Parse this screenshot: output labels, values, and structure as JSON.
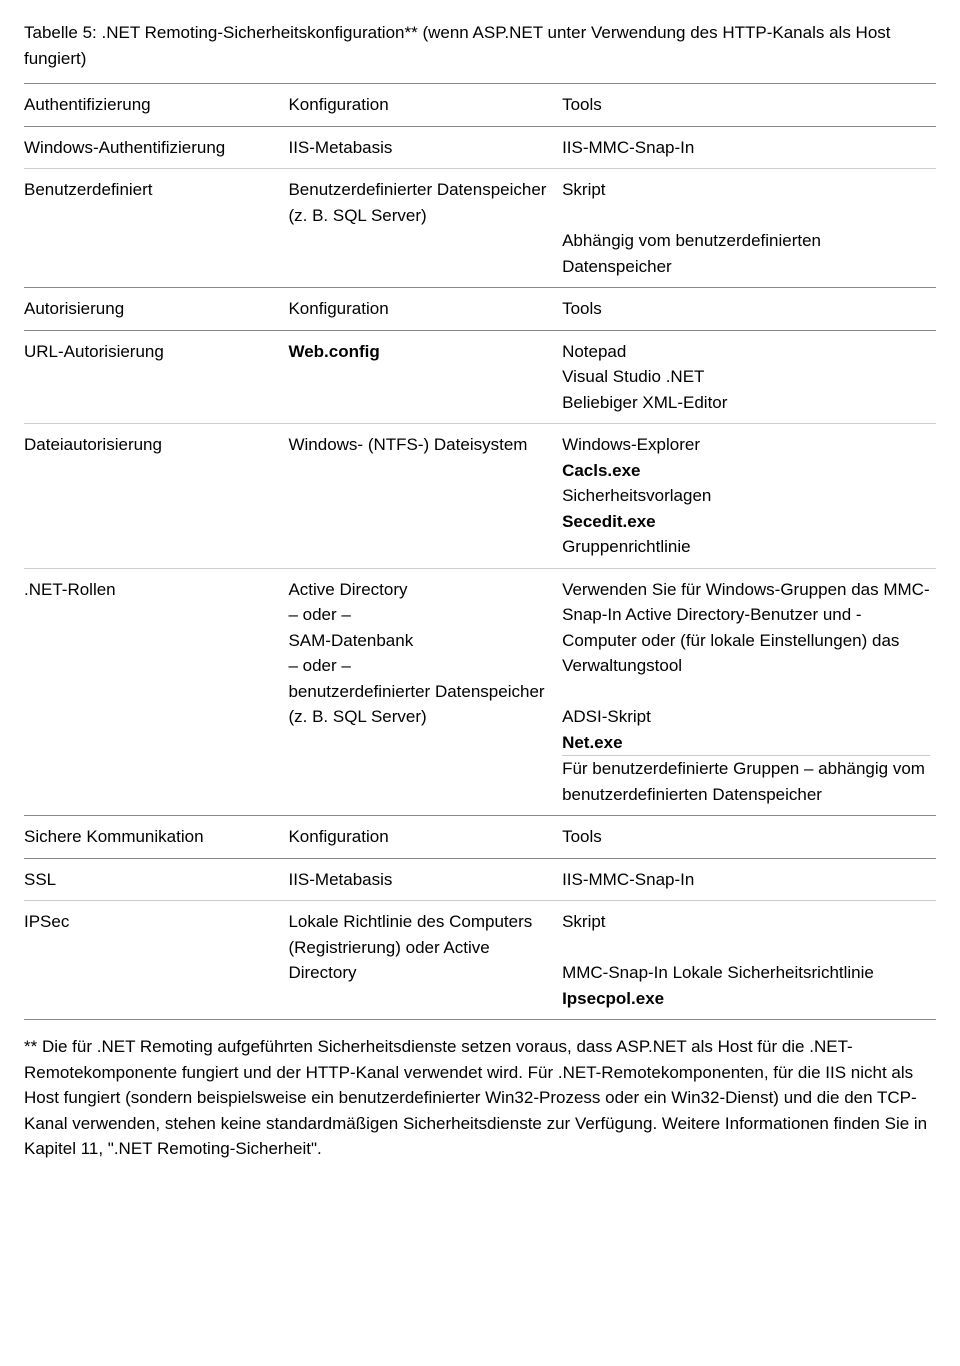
{
  "title": "Tabelle 5: .NET Remoting-Sicherheitskonfiguration** (wenn ASP.NET unter Verwendung des HTTP-Kanals als Host fungiert)",
  "rows": {
    "h1": {
      "c1": "Authentifizierung",
      "c2": "Konfiguration",
      "c3": "Tools"
    },
    "r1": {
      "c1": "Windows-Authentifizierung",
      "c2": "IIS-Metabasis",
      "c3": "IIS-MMC-Snap-In"
    },
    "r2": {
      "c1": "Benutzerdefiniert",
      "c2": "Benutzerdefinierter Datenspeicher (z. B. SQL Server)",
      "c3a": "Skript",
      "c3b": "Abhängig vom benutzerdefinierten Datenspeicher"
    },
    "h2": {
      "c1": "Autorisierung",
      "c2": "Konfiguration",
      "c3": "Tools"
    },
    "r3": {
      "c1": "URL-Autorisierung",
      "c2": "Web.config",
      "c3a": "Notepad",
      "c3b": "Visual Studio .NET",
      "c3c": "Beliebiger XML-Editor"
    },
    "r4": {
      "c1": "Dateiautorisierung",
      "c2": "Windows- (NTFS-) Dateisystem",
      "c3a": "Windows-Explorer",
      "c3b": "Cacls.exe",
      "c3c": "Sicherheitsvorlagen",
      "c3d": "Secedit.exe",
      "c3e": "Gruppenrichtlinie"
    },
    "r5": {
      "c1": ".NET-Rollen",
      "c2a": "Active Directory",
      "c2b": "– oder –",
      "c2c": "SAM-Datenbank",
      "c2d": "– oder –",
      "c2e": "benutzerdefinierter Datenspeicher (z. B. SQL Server)",
      "c3a": "Verwenden Sie für Windows-Gruppen das MMC-Snap-In Active Directory-Benutzer und -Computer oder (für lokale Einstellungen) das Verwaltungstool",
      "c3b": "ADSI-Skript",
      "c3c": "Net.exe",
      "c3d": "Für benutzerdefinierte Gruppen – abhängig vom benutzerdefinierten Datenspeicher"
    },
    "h3": {
      "c1": "Sichere Kommunikation",
      "c2": "Konfiguration",
      "c3": "Tools"
    },
    "r6": {
      "c1": "SSL",
      "c2": "IIS-Metabasis",
      "c3": "IIS-MMC-Snap-In"
    },
    "r7": {
      "c1": "IPSec",
      "c2": "Lokale Richtlinie des Computers (Registrierung) oder Active Directory",
      "c3a": "Skript",
      "c3b": "MMC-Snap-In Lokale Sicherheitsrichtlinie",
      "c3c": "Ipsecpol.exe"
    }
  },
  "footnote": "** Die für .NET Remoting aufgeführten Sicherheitsdienste setzen voraus, dass ASP.NET als Host für die .NET-Remotekomponente fungiert und der HTTP-Kanal verwendet wird. Für .NET-Remotekomponenten, für die IIS nicht als Host fungiert (sondern beispielsweise ein benutzerdefinierter Win32-Prozess oder ein Win32-Dienst) und die den TCP-Kanal verwenden, stehen keine standardmäßigen Sicherheitsdienste zur Verfügung. Weitere Informationen finden Sie in Kapitel 11, \".NET Remoting-Sicherheit\"."
}
